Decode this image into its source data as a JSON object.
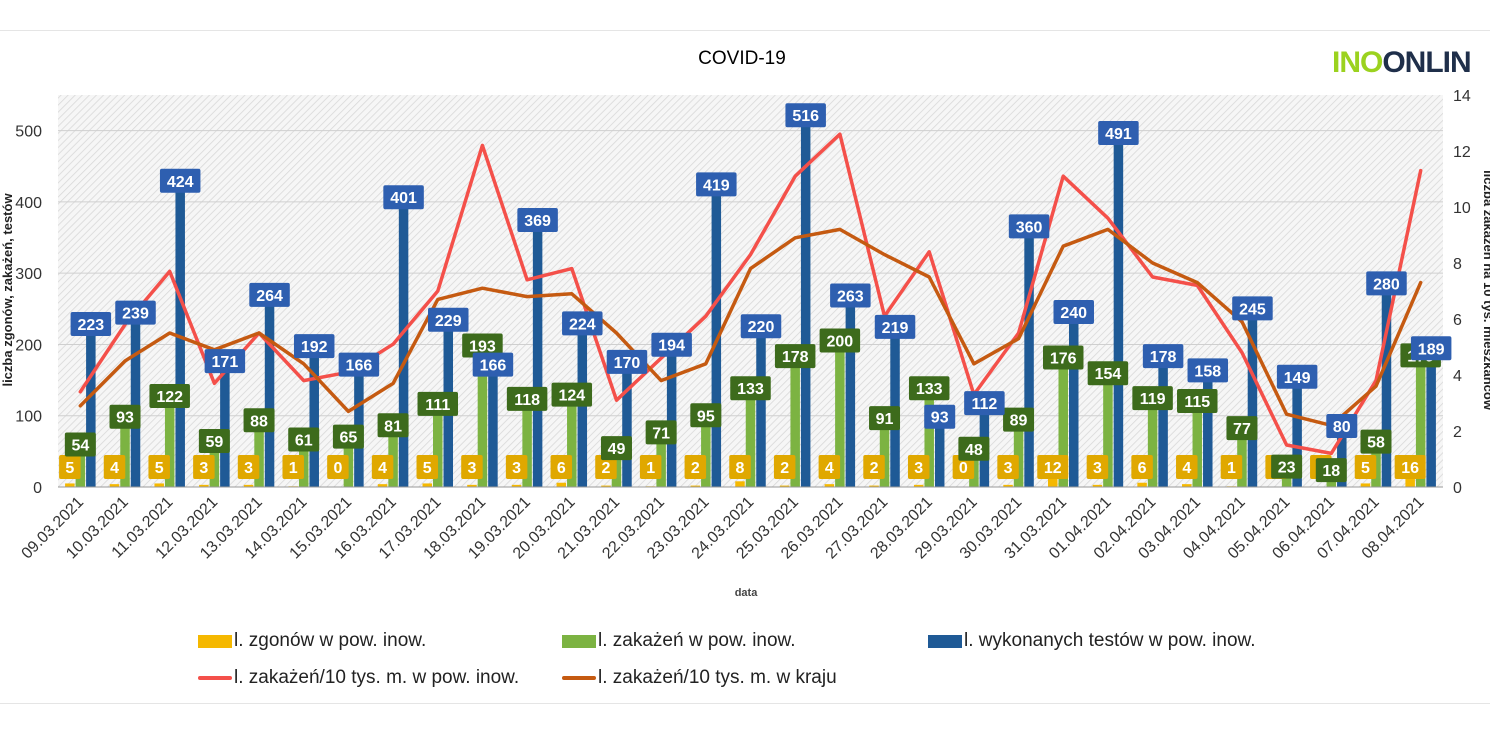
{
  "brand": {
    "logo_part1": "INO",
    "logo_part2": "ONLIN"
  },
  "legend": {
    "deaths": "l. zgonów w pow. inow.",
    "infections": "l. zakażeń w pow. inow.",
    "tests": "l. wykonanych testów w pow. inow.",
    "rate_local": "l. zakażeń/10 tys. m. w pow. inow.",
    "rate_country": "l. zakażeń/10 tys. m. w kraju"
  },
  "chart_data": {
    "type": "bar",
    "title": "COVID-19",
    "xlabel": "data",
    "ylabel": "liczba zgonów, zakażeń, testów",
    "y2label": "liczba zakażeń na 10 tys. mieszkańców",
    "ylim": [
      0,
      550
    ],
    "y2lim": [
      0,
      14
    ],
    "yticks": [
      0,
      100,
      200,
      300,
      400,
      500
    ],
    "y2ticks": [
      0,
      2,
      4,
      6,
      8,
      10,
      12,
      14
    ],
    "categories": [
      "09.03.2021",
      "10.03.2021",
      "11.03.2021",
      "12.03.2021",
      "13.03.2021",
      "14.03.2021",
      "15.03.2021",
      "16.03.2021",
      "17.03.2021",
      "18.03.2021",
      "19.03.2021",
      "20.03.2021",
      "21.03.2021",
      "22.03.2021",
      "23.03.2021",
      "24.03.2021",
      "25.03.2021",
      "26.03.2021",
      "27.03.2021",
      "28.03.2021",
      "29.03.2021",
      "30.03.2021",
      "31.03.2021",
      "01.04.2021",
      "02.04.2021",
      "03.04.2021",
      "04.04.2021",
      "05.04.2021",
      "06.04.2021",
      "07.04.2021",
      "08.04.2021"
    ],
    "series": [
      {
        "name": "l. zgonów w pow. inow.",
        "axis": "left",
        "kind": "bar",
        "color": "#f5b800",
        "label_bg": "#e0a800",
        "values": [
          5,
          4,
          5,
          3,
          3,
          1,
          0,
          4,
          5,
          3,
          3,
          6,
          2,
          1,
          2,
          8,
          2,
          4,
          2,
          3,
          0,
          3,
          12,
          3,
          6,
          4,
          1,
          0,
          0,
          5,
          16
        ]
      },
      {
        "name": "l. zakażeń w pow. inow.",
        "axis": "left",
        "kind": "bar",
        "color": "#7cb342",
        "label_bg": "#3d6b1c",
        "values": [
          54,
          93,
          122,
          59,
          88,
          61,
          65,
          81,
          111,
          193,
          118,
          124,
          49,
          71,
          95,
          133,
          178,
          200,
          91,
          133,
          48,
          89,
          176,
          154,
          119,
          115,
          77,
          23,
          18,
          58,
          179
        ]
      },
      {
        "name": "l. wykonanych testów w pow. inow.",
        "axis": "left",
        "kind": "bar",
        "color": "#1f5a96",
        "label_bg": "#2e5fb0",
        "values": [
          223,
          239,
          424,
          171,
          264,
          192,
          166,
          401,
          229,
          166,
          369,
          224,
          170,
          194,
          419,
          220,
          516,
          263,
          219,
          93,
          112,
          360,
          240,
          491,
          178,
          158,
          245,
          149,
          80,
          280,
          189
        ]
      },
      {
        "name": "l. zakażeń/10 tys. m. w pow. inow.",
        "axis": "right",
        "kind": "line",
        "color": "#f4504a",
        "values": [
          3.4,
          5.8,
          7.7,
          3.7,
          5.5,
          3.8,
          4.1,
          5.1,
          7.0,
          12.2,
          7.4,
          7.8,
          3.1,
          4.6,
          6.1,
          8.3,
          11.1,
          12.6,
          6.1,
          8.4,
          3.3,
          5.5,
          11.1,
          9.6,
          7.5,
          7.2,
          4.8,
          1.5,
          1.2,
          3.8,
          11.3
        ]
      },
      {
        "name": "l. zakażeń/10 tys. m. w kraju",
        "axis": "right",
        "kind": "line",
        "color": "#c55a11",
        "values": [
          2.9,
          4.5,
          5.5,
          4.9,
          5.5,
          4.4,
          2.7,
          3.7,
          6.7,
          7.1,
          6.8,
          6.9,
          5.5,
          3.8,
          4.4,
          7.8,
          8.9,
          9.2,
          8.3,
          7.5,
          4.4,
          5.3,
          8.6,
          9.2,
          8.0,
          7.3,
          5.9,
          2.6,
          2.2,
          3.6,
          7.3
        ]
      }
    ]
  }
}
